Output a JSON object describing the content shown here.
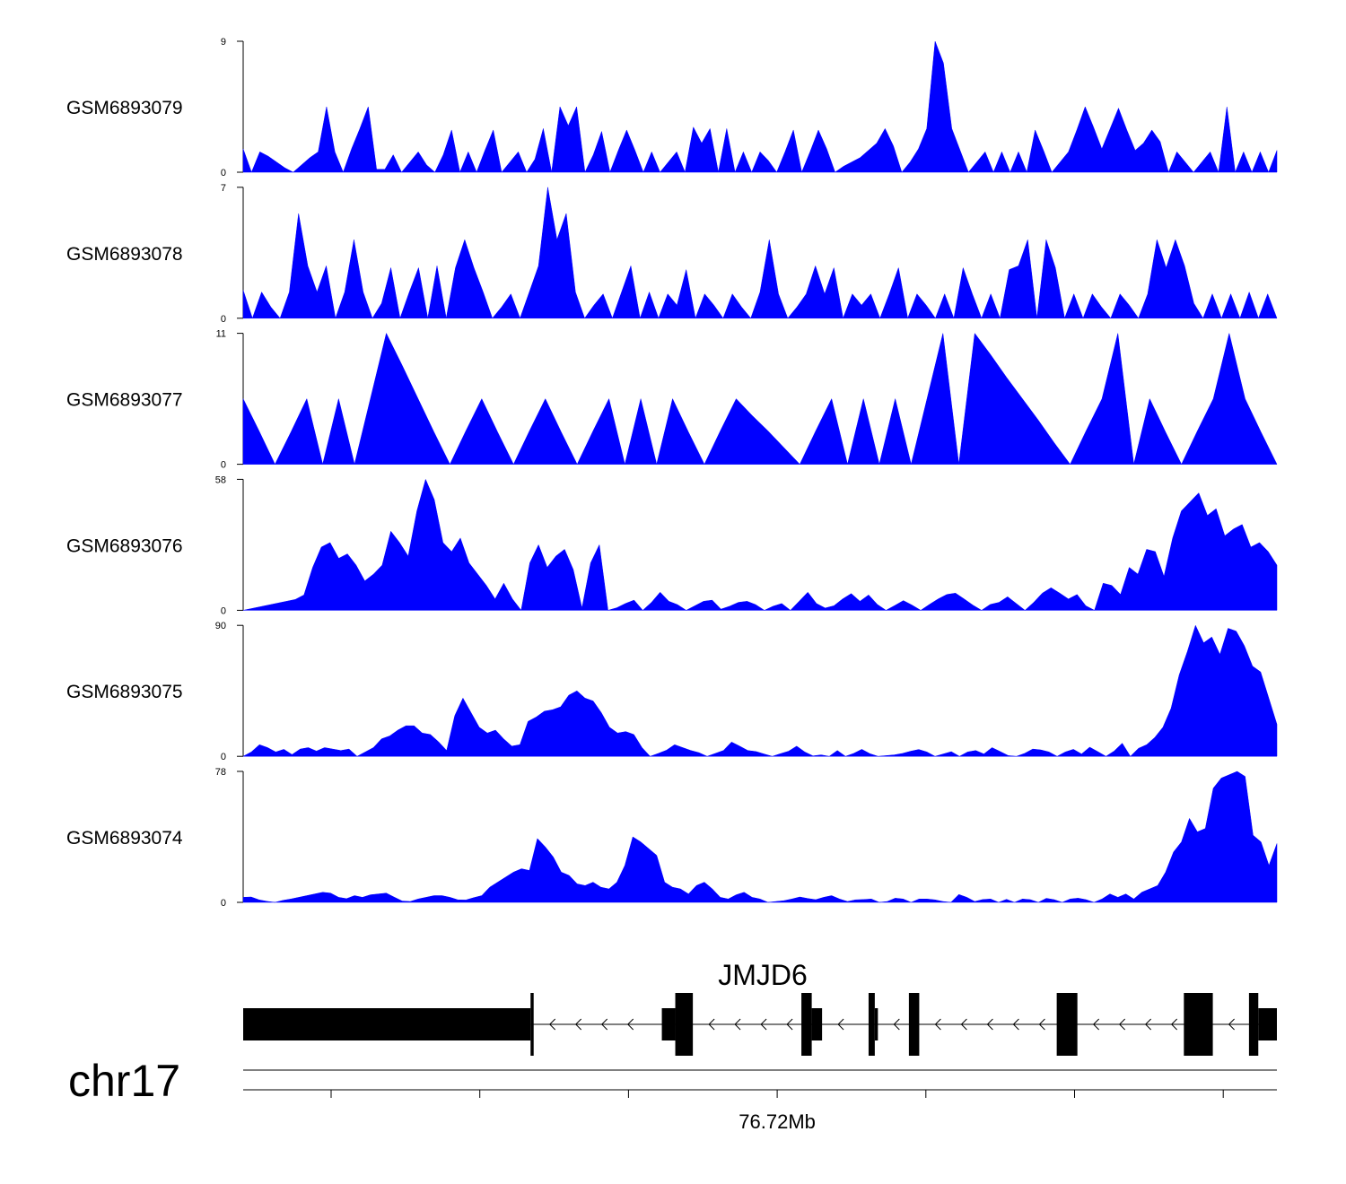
{
  "chart_data": {
    "type": "area",
    "color": "#0000ff",
    "x_positions": 120,
    "tracks": [
      {
        "name": "GSM6893079",
        "ylim": [
          0,
          9
        ],
        "ymax_label": "9",
        "ymin_label": "0",
        "values": [
          1.6,
          0,
          1.4,
          1.1,
          0.7,
          0.3,
          0,
          0.5,
          1,
          1.4,
          4.5,
          1.4,
          0,
          1.6,
          3,
          4.5,
          0.2,
          0.2,
          1.2,
          0,
          0.7,
          1.4,
          0.5,
          0,
          1.2,
          2.9,
          0,
          1.4,
          0,
          1.5,
          2.9,
          0,
          0.7,
          1.4,
          0,
          0.9,
          3,
          0,
          4.5,
          3.2,
          4.5,
          0,
          1.2,
          2.8,
          0,
          1.5,
          2.9,
          1.5,
          0,
          1.4,
          0,
          0.7,
          1.4,
          0,
          3.1,
          2,
          3,
          0,
          3,
          0,
          1.4,
          0,
          1.4,
          0.8,
          0,
          1.4,
          2.9,
          0,
          1.4,
          2.9,
          1.6,
          0,
          0.4,
          0.7,
          1,
          1.5,
          2,
          3,
          1.8,
          0,
          0.7,
          1.6,
          3,
          9,
          7.5,
          3,
          1.5,
          0,
          0.7,
          1.4,
          0,
          1.4,
          0,
          1.4,
          0,
          2.9,
          1.5,
          0,
          0.7,
          1.4,
          2.9,
          4.5,
          3.1,
          1.6,
          3,
          4.4,
          2.9,
          1.5,
          2,
          2.9,
          2.1,
          0,
          1.4,
          0.7,
          0,
          0.7,
          1.4,
          0,
          4.5,
          0,
          1.4,
          0,
          1.4,
          0,
          1.5
        ]
      },
      {
        "name": "GSM6893078",
        "ylim": [
          0,
          7
        ],
        "ymax_label": "7",
        "ymin_label": "0",
        "values": [
          1.5,
          0,
          1.4,
          0.6,
          0,
          1.4,
          5.6,
          2.8,
          1.4,
          2.8,
          0,
          1.4,
          4.2,
          1.4,
          0,
          0.8,
          2.7,
          0,
          1.4,
          2.7,
          0,
          2.8,
          0,
          2.7,
          4.2,
          2.7,
          1.4,
          0,
          0.6,
          1.3,
          0,
          1.4,
          2.8,
          7,
          4.2,
          5.6,
          1.4,
          0,
          0.7,
          1.3,
          0,
          1.4,
          2.8,
          0,
          1.4,
          0,
          1.3,
          0.7,
          2.6,
          0,
          1.3,
          0.7,
          0,
          1.3,
          0.6,
          0,
          1.4,
          4.2,
          1.3,
          0,
          0.6,
          1.3,
          2.8,
          1.3,
          2.7,
          0,
          1.3,
          0.7,
          1.3,
          0,
          1.3,
          2.7,
          0,
          1.3,
          0.7,
          0,
          1.3,
          0,
          2.7,
          1.3,
          0,
          1.3,
          0,
          2.6,
          2.8,
          4.2,
          0,
          4.2,
          2.7,
          0,
          1.3,
          0,
          1.3,
          0.6,
          0,
          1.3,
          0.7,
          0,
          1.3,
          4.2,
          2.7,
          4.2,
          2.8,
          0.8,
          0,
          1.3,
          0,
          1.3,
          0,
          1.4,
          0,
          1.3,
          0
        ]
      },
      {
        "name": "GSM6893077",
        "ylim": [
          0,
          11
        ],
        "ymax_label": "11",
        "ymin_label": "0",
        "values": [
          5.5,
          2.8,
          0,
          2.7,
          5.5,
          0,
          5.5,
          0,
          5.5,
          11,
          8.3,
          5.5,
          2.7,
          0,
          2.8,
          5.5,
          2.7,
          0,
          2.8,
          5.5,
          2.7,
          0,
          2.8,
          5.5,
          0,
          5.5,
          0,
          5.5,
          2.7,
          0,
          2.8,
          5.5,
          4.1,
          2.8,
          1.4,
          0,
          2.8,
          5.5,
          0,
          5.5,
          0,
          5.5,
          0,
          5.5,
          11,
          0,
          11,
          9.2,
          7.3,
          5.5,
          3.7,
          1.8,
          0,
          2.8,
          5.5,
          11,
          0,
          5.5,
          2.7,
          0,
          2.8,
          5.5,
          11,
          5.5,
          2.7,
          0
        ]
      },
      {
        "name": "GSM6893076",
        "ylim": [
          0,
          58
        ],
        "ymax_label": "58",
        "ymin_label": "0",
        "values": [
          0,
          0.8,
          1.6,
          2.4,
          3.2,
          4,
          4.8,
          6.8,
          19,
          28,
          30,
          23,
          25,
          20,
          13,
          16,
          20,
          35,
          30,
          24,
          44,
          58,
          49,
          30,
          26,
          32,
          21,
          16,
          11,
          5,
          12,
          5,
          0,
          21,
          29,
          19,
          24,
          27,
          18,
          1,
          21,
          29,
          0,
          1.1,
          3,
          4.5,
          0,
          3.5,
          8,
          4,
          2.5,
          0,
          2,
          4,
          4.5,
          0.5,
          1.8,
          3.5,
          4,
          2.5,
          0,
          1.8,
          3,
          0,
          4,
          8,
          3,
          1,
          2,
          5,
          7.4,
          4,
          6.8,
          2.6,
          0,
          2.1,
          4.3,
          2.3,
          0,
          2.6,
          5,
          7,
          7.6,
          5,
          2.3,
          0,
          2.6,
          3.5,
          6,
          3,
          0,
          3.5,
          7.6,
          10,
          7.6,
          5,
          7,
          2,
          0,
          12,
          11,
          7,
          19,
          16,
          27,
          26,
          15,
          32,
          44,
          48,
          52,
          42,
          45,
          33,
          36,
          38,
          28,
          30,
          26,
          20
        ]
      },
      {
        "name": "GSM6893075",
        "ylim": [
          0,
          90
        ],
        "ymax_label": "90",
        "ymin_label": "0",
        "values": [
          0,
          3,
          8,
          6,
          3,
          4.8,
          1.2,
          5,
          6,
          3.6,
          6,
          5,
          4,
          5,
          0,
          3,
          6,
          12,
          14,
          18,
          21,
          21,
          16,
          15,
          10,
          4,
          28,
          40,
          30,
          20,
          16,
          18,
          12,
          7,
          8,
          24,
          27,
          31,
          32,
          34,
          42,
          45,
          40,
          38,
          30,
          20,
          16,
          17,
          15,
          6,
          0,
          2,
          4.2,
          8,
          6,
          4,
          2.5,
          0,
          2,
          4,
          9.8,
          7,
          4,
          3.3,
          1.6,
          0,
          1.8,
          3.5,
          7,
          3,
          0.3,
          1,
          0,
          4,
          0,
          2,
          4.8,
          1.8,
          0,
          0.5,
          1,
          2,
          3.5,
          4.7,
          3,
          0,
          1.6,
          3.2,
          0,
          3,
          4,
          1.6,
          6,
          3.3,
          0.5,
          0,
          2,
          5,
          4.4,
          3,
          0,
          3,
          4.8,
          1.6,
          6.3,
          3.2,
          0,
          3.6,
          9,
          0,
          5.5,
          8,
          13,
          20,
          33,
          56,
          72,
          90,
          78,
          82,
          70,
          88,
          86,
          76,
          62,
          58,
          40,
          22
        ]
      },
      {
        "name": "GSM6893074",
        "ylim": [
          0,
          78
        ],
        "ymax_label": "78",
        "ymin_label": "0",
        "values": [
          3,
          3.2,
          1.5,
          0.6,
          0,
          1.2,
          2,
          3,
          4,
          5,
          6,
          5.5,
          3,
          2.2,
          4,
          3,
          4.5,
          5,
          5.5,
          3.1,
          0.8,
          0.5,
          2,
          3,
          4,
          4,
          3,
          1.5,
          1.4,
          2.8,
          4,
          9,
          12,
          15,
          18,
          20,
          19,
          38,
          33,
          27,
          18,
          16,
          11,
          10,
          12,
          9,
          8,
          12,
          22,
          39,
          36,
          32,
          28,
          12,
          9,
          8,
          5,
          10,
          12,
          8,
          3,
          2,
          4.5,
          6,
          3,
          2,
          0,
          0.5,
          1,
          2,
          3.2,
          2.3,
          1.6,
          3,
          4,
          2,
          0.5,
          1.5,
          1.7,
          2,
          0,
          0.5,
          2.5,
          2,
          0,
          2,
          2,
          1.5,
          0.5,
          0,
          4.7,
          3,
          0.5,
          1.7,
          2,
          0,
          1.8,
          0,
          2,
          1.6,
          0,
          2.4,
          1.6,
          0,
          2,
          2.5,
          1.6,
          0,
          2,
          5,
          3,
          5,
          2,
          6,
          8,
          10,
          18,
          30,
          36,
          50,
          42,
          44,
          68,
          74,
          76,
          78,
          75,
          40,
          36,
          22,
          35
        ]
      }
    ],
    "gene": {
      "name": "JMJD6",
      "strand": "-",
      "exons": [
        {
          "start": 0.0,
          "end": 0.278,
          "type": "utr"
        },
        {
          "start": 0.278,
          "end": 0.281,
          "type": "tall"
        },
        {
          "start": 0.405,
          "end": 0.418,
          "type": "utr"
        },
        {
          "start": 0.418,
          "end": 0.435,
          "type": "tall"
        },
        {
          "start": 0.54,
          "end": 0.55,
          "type": "tall"
        },
        {
          "start": 0.55,
          "end": 0.56,
          "type": "utr"
        },
        {
          "start": 0.605,
          "end": 0.611,
          "type": "tall"
        },
        {
          "start": 0.611,
          "end": 0.614,
          "type": "utr"
        },
        {
          "start": 0.644,
          "end": 0.654,
          "type": "tall"
        },
        {
          "start": 0.787,
          "end": 0.807,
          "type": "tall"
        },
        {
          "start": 0.91,
          "end": 0.938,
          "type": "tall"
        },
        {
          "start": 0.973,
          "end": 0.982,
          "type": "tall"
        },
        {
          "start": 0.982,
          "end": 1.0,
          "type": "utr"
        }
      ]
    },
    "axis": {
      "chromosome": "chr17",
      "tick_label": "76.72Mb",
      "labeled_tick_index": 3,
      "tick_count": 7
    }
  }
}
